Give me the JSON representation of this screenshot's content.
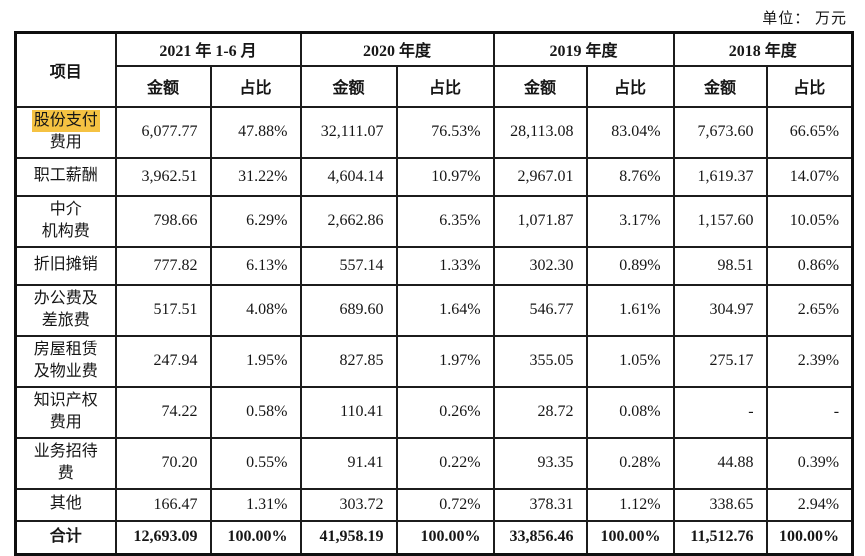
{
  "unit_label": "单位： 万元",
  "table": {
    "item_header": "项目",
    "highlight_color": "#f5c242",
    "periods": [
      {
        "label": "2021 年 1-6 月",
        "amount_header": "金额",
        "ratio_header": "占比"
      },
      {
        "label": "2020 年度",
        "amount_header": "金额",
        "ratio_header": "占比"
      },
      {
        "label": "2019 年度",
        "amount_header": "金额",
        "ratio_header": "占比"
      },
      {
        "label": "2018 年度",
        "amount_header": "金额",
        "ratio_header": "占比"
      }
    ],
    "rows": [
      {
        "item_line1": "股份支付",
        "item_line2": "费用",
        "highlighted": true,
        "values": [
          "6,077.77",
          "47.88%",
          "32,111.07",
          "76.53%",
          "28,113.08",
          "83.04%",
          "7,673.60",
          "66.65%"
        ]
      },
      {
        "item_line1": "职工薪酬",
        "values": [
          "3,962.51",
          "31.22%",
          "4,604.14",
          "10.97%",
          "2,967.01",
          "8.76%",
          "1,619.37",
          "14.07%"
        ]
      },
      {
        "item_line1": "中介",
        "item_line2": "机构费",
        "values": [
          "798.66",
          "6.29%",
          "2,662.86",
          "6.35%",
          "1,071.87",
          "3.17%",
          "1,157.60",
          "10.05%"
        ]
      },
      {
        "item_line1": "折旧摊销",
        "values": [
          "777.82",
          "6.13%",
          "557.14",
          "1.33%",
          "302.30",
          "0.89%",
          "98.51",
          "0.86%"
        ]
      },
      {
        "item_line1": "办公费及",
        "item_line2": "差旅费",
        "values": [
          "517.51",
          "4.08%",
          "689.60",
          "1.64%",
          "546.77",
          "1.61%",
          "304.97",
          "2.65%"
        ]
      },
      {
        "item_line1": "房屋租赁",
        "item_line2": "及物业费",
        "values": [
          "247.94",
          "1.95%",
          "827.85",
          "1.97%",
          "355.05",
          "1.05%",
          "275.17",
          "2.39%"
        ]
      },
      {
        "item_line1": "知识产权",
        "item_line2": "费用",
        "values": [
          "74.22",
          "0.58%",
          "110.41",
          "0.26%",
          "28.72",
          "0.08%",
          "-",
          "-"
        ]
      },
      {
        "item_line1": "业务招待",
        "item_line2": "费",
        "values": [
          "70.20",
          "0.55%",
          "91.41",
          "0.22%",
          "93.35",
          "0.28%",
          "44.88",
          "0.39%"
        ]
      },
      {
        "item_line1": "其他",
        "values": [
          "166.47",
          "1.31%",
          "303.72",
          "0.72%",
          "378.31",
          "1.12%",
          "338.65",
          "2.94%"
        ]
      },
      {
        "item_line1": "合计",
        "is_total": true,
        "values": [
          "12,693.09",
          "100.00%",
          "41,958.19",
          "100.00%",
          "33,856.46",
          "100.00%",
          "11,512.76",
          "100.00%"
        ]
      }
    ]
  }
}
